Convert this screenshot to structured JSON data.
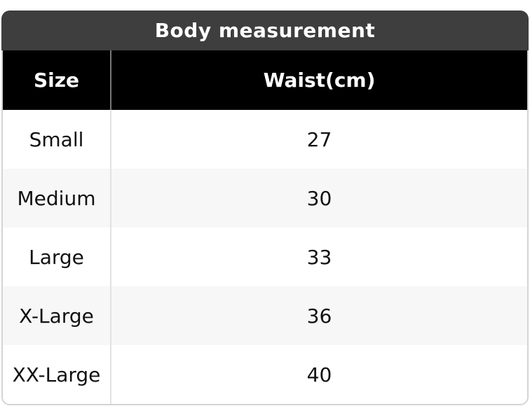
{
  "table": {
    "title": "Body measurement",
    "columns": {
      "size_label": "Size",
      "waist_label": "Waist(cm)"
    },
    "rows": [
      {
        "size": "Small",
        "waist": "27"
      },
      {
        "size": "Medium",
        "waist": "30"
      },
      {
        "size": "Large",
        "waist": "33"
      },
      {
        "size": "X-Large",
        "waist": "36"
      },
      {
        "size": "XX-Large",
        "waist": "40"
      }
    ],
    "colors": {
      "title_bar_bg": "#3e3e3e",
      "title_text": "#ffffff",
      "header_bg": "#000000",
      "header_text": "#ffffff",
      "row_bg": "#ffffff",
      "row_alt_bg": "#f7f7f7",
      "data_text": "#111111",
      "outer_border": "#d4d4d4",
      "header_divider": "#787878",
      "row_divider": "#e2e2e2"
    }
  },
  "chart_data": {
    "type": "table",
    "title": "Body measurement",
    "columns": [
      "Size",
      "Waist(cm)"
    ],
    "rows": [
      [
        "Small",
        27
      ],
      [
        "Medium",
        30
      ],
      [
        "Large",
        33
      ],
      [
        "X-Large",
        36
      ],
      [
        "XX-Large",
        40
      ]
    ],
    "notes": "Zebra-striped size chart; header row black with white bold text; title bar dark gray with rounded top corners"
  }
}
